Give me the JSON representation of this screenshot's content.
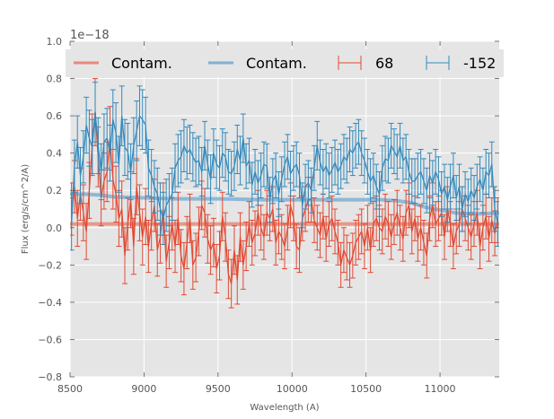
{
  "chart_data": {
    "type": "line",
    "title": "",
    "xlabel": "Wavelength (A)",
    "ylabel": "Flux (erg/s/cm^2/A)",
    "y_offset_label": "1e−18",
    "xlim": [
      8500,
      11400
    ],
    "ylim": [
      -0.8,
      1.0
    ],
    "xticks": [
      8500,
      9000,
      9500,
      10000,
      10500,
      11000
    ],
    "xtick_labels": [
      "8500",
      "9000",
      "9500",
      "10000",
      "10500",
      "11000"
    ],
    "yticks": [
      -0.8,
      -0.6,
      -0.4,
      -0.2,
      0.0,
      0.2,
      0.4,
      0.6,
      0.8,
      1.0
    ],
    "ytick_labels": [
      "−0.8",
      "−0.6",
      "−0.4",
      "−0.2",
      "0.0",
      "0.2",
      "0.4",
      "0.6",
      "0.8",
      "1.0"
    ],
    "grid": true,
    "legend_position": "top",
    "legend": [
      {
        "label": "Contam.",
        "kind": "line",
        "color": "#E8897A"
      },
      {
        "label": "Contam.",
        "kind": "line",
        "color": "#7FB0D3"
      },
      {
        "label": "68",
        "kind": "errorbar",
        "color": "#E24A33"
      },
      {
        "label": "-152",
        "kind": "errorbar",
        "color": "#348ABD"
      }
    ],
    "x_start": 8510,
    "x_step": 20,
    "series": [
      {
        "name": "-152",
        "kind": "errorbar",
        "color": "#348ABD",
        "values": [
          0.02,
          0.33,
          0.46,
          0.28,
          0.38,
          0.55,
          0.48,
          0.43,
          0.62,
          0.44,
          0.3,
          0.46,
          0.48,
          0.4,
          0.58,
          0.51,
          0.34,
          0.6,
          0.43,
          0.41,
          0.3,
          0.44,
          0.52,
          0.6,
          0.58,
          0.55,
          0.32,
          0.28,
          0.22,
          0.18,
          0.1,
          0.05,
          0.12,
          0.15,
          0.18,
          0.32,
          0.36,
          0.38,
          0.44,
          0.4,
          0.42,
          0.38,
          0.35,
          0.36,
          0.3,
          0.44,
          0.34,
          0.26,
          0.4,
          0.34,
          0.32,
          0.4,
          0.38,
          0.3,
          0.29,
          0.33,
          0.42,
          0.36,
          0.48,
          0.33,
          0.36,
          0.23,
          0.3,
          0.24,
          0.28,
          0.34,
          0.33,
          0.15,
          0.25,
          0.28,
          0.18,
          0.26,
          0.34,
          0.38,
          0.29,
          0.32,
          0.34,
          0.28,
          0.12,
          0.22,
          0.24,
          0.2,
          0.32,
          0.44,
          0.35,
          0.3,
          0.33,
          0.28,
          0.31,
          0.35,
          0.3,
          0.33,
          0.38,
          0.36,
          0.42,
          0.4,
          0.44,
          0.46,
          0.4,
          0.36,
          0.3,
          0.25,
          0.28,
          0.22,
          0.18,
          0.32,
          0.37,
          0.36,
          0.44,
          0.41,
          0.38,
          0.44,
          0.36,
          0.38,
          0.3,
          0.25,
          0.25,
          0.28,
          0.3,
          0.25,
          0.2,
          0.28,
          0.24,
          0.3,
          0.26,
          0.18,
          0.22,
          0.15,
          0.22,
          0.28,
          0.16,
          0.22,
          0.1,
          0.18,
          0.14,
          0.2,
          0.16,
          0.22,
          0.26,
          0.2,
          0.3,
          0.28,
          0.34,
          0.1,
          0.02
        ],
        "errors": [
          0.14,
          0.14,
          0.14,
          0.15,
          0.14,
          0.15,
          0.15,
          0.15,
          0.16,
          0.15,
          0.15,
          0.15,
          0.16,
          0.15,
          0.16,
          0.16,
          0.15,
          0.16,
          0.15,
          0.15,
          0.15,
          0.15,
          0.16,
          0.16,
          0.16,
          0.15,
          0.15,
          0.14,
          0.14,
          0.14,
          0.14,
          0.14,
          0.14,
          0.14,
          0.14,
          0.13,
          0.14,
          0.14,
          0.14,
          0.14,
          0.13,
          0.13,
          0.13,
          0.13,
          0.13,
          0.13,
          0.13,
          0.13,
          0.13,
          0.13,
          0.12,
          0.13,
          0.13,
          0.12,
          0.12,
          0.13,
          0.13,
          0.13,
          0.13,
          0.12,
          0.12,
          0.12,
          0.12,
          0.12,
          0.12,
          0.12,
          0.12,
          0.12,
          0.12,
          0.12,
          0.12,
          0.12,
          0.12,
          0.12,
          0.12,
          0.12,
          0.12,
          0.12,
          0.12,
          0.12,
          0.12,
          0.12,
          0.12,
          0.13,
          0.12,
          0.12,
          0.12,
          0.12,
          0.12,
          0.12,
          0.12,
          0.12,
          0.12,
          0.12,
          0.12,
          0.12,
          0.12,
          0.12,
          0.12,
          0.12,
          0.12,
          0.12,
          0.12,
          0.12,
          0.12,
          0.12,
          0.12,
          0.12,
          0.12,
          0.12,
          0.12,
          0.12,
          0.12,
          0.12,
          0.12,
          0.12,
          0.12,
          0.12,
          0.12,
          0.12,
          0.12,
          0.12,
          0.12,
          0.12,
          0.12,
          0.12,
          0.12,
          0.12,
          0.12,
          0.12,
          0.12,
          0.12,
          0.12,
          0.12,
          0.12,
          0.12,
          0.12,
          0.12,
          0.12,
          0.12,
          0.12,
          0.12,
          0.12,
          0.12,
          0.12
        ]
      },
      {
        "name": "68",
        "kind": "errorbar",
        "color": "#E24A33",
        "values": [
          0.1,
          0.22,
          0.05,
          0.18,
          0.08,
          -0.02,
          0.2,
          0.45,
          0.62,
          0.38,
          0.16,
          0.25,
          0.3,
          0.48,
          0.26,
          0.18,
          0.05,
          0.1,
          -0.15,
          0.02,
          0.15,
          -0.1,
          0.22,
          0.08,
          -0.05,
          0.06,
          -0.1,
          0.02,
          0.12,
          -0.12,
          -0.05,
          0.1,
          -0.18,
          -0.08,
          0.02,
          -0.1,
          0.05,
          -0.15,
          -0.22,
          -0.08,
          0.05,
          -0.2,
          -0.16,
          -0.02,
          0.12,
          0.08,
          -0.06,
          -0.12,
          -0.08,
          -0.22,
          -0.15,
          0.06,
          -0.05,
          -0.25,
          -0.3,
          -0.12,
          -0.28,
          -0.05,
          -0.2,
          -0.1,
          0.02,
          -0.08,
          -0.03,
          0.08,
          0.0,
          -0.05,
          0.08,
          0.05,
          0.1,
          -0.08,
          -0.02,
          -0.05,
          -0.1,
          0.0,
          0.12,
          0.05,
          -0.1,
          -0.12,
          0.05,
          0.1,
          0.15,
          0.15,
          0.04,
          0.0,
          -0.04,
          0.06,
          -0.06,
          0.02,
          0.05,
          -0.02,
          -0.08,
          -0.2,
          -0.12,
          -0.16,
          -0.2,
          -0.15,
          -0.08,
          -0.05,
          -0.02,
          -0.1,
          0.0,
          -0.12,
          0.02,
          0.05,
          0.0,
          -0.02,
          0.06,
          0.02,
          -0.05,
          0.03,
          0.08,
          0.0,
          -0.06,
          0.08,
          0.12,
          -0.02,
          0.05,
          -0.06,
          0.0,
          -0.08,
          -0.15,
          0.05,
          0.12,
          0.02,
          0.05,
          0.08,
          -0.05,
          0.1,
          0.02,
          -0.1,
          -0.02,
          0.02,
          0.1,
          0.05,
          0.0,
          -0.05,
          0.02,
          0.08,
          -0.1,
          0.0,
          0.06,
          -0.06,
          0.04,
          -0.03,
          0.04
        ],
        "errors": [
          0.14,
          0.14,
          0.15,
          0.14,
          0.15,
          0.15,
          0.15,
          0.16,
          0.18,
          0.16,
          0.15,
          0.15,
          0.16,
          0.17,
          0.16,
          0.15,
          0.15,
          0.15,
          0.15,
          0.14,
          0.15,
          0.15,
          0.15,
          0.15,
          0.15,
          0.15,
          0.14,
          0.14,
          0.14,
          0.14,
          0.14,
          0.14,
          0.14,
          0.14,
          0.14,
          0.14,
          0.14,
          0.14,
          0.14,
          0.14,
          0.13,
          0.13,
          0.13,
          0.13,
          0.13,
          0.13,
          0.13,
          0.13,
          0.13,
          0.13,
          0.13,
          0.13,
          0.13,
          0.13,
          0.13,
          0.13,
          0.13,
          0.13,
          0.13,
          0.13,
          0.12,
          0.12,
          0.12,
          0.12,
          0.12,
          0.12,
          0.12,
          0.12,
          0.12,
          0.12,
          0.12,
          0.12,
          0.12,
          0.12,
          0.12,
          0.12,
          0.12,
          0.12,
          0.12,
          0.12,
          0.12,
          0.12,
          0.12,
          0.12,
          0.12,
          0.12,
          0.12,
          0.12,
          0.12,
          0.12,
          0.12,
          0.12,
          0.12,
          0.12,
          0.12,
          0.12,
          0.12,
          0.12,
          0.12,
          0.12,
          0.12,
          0.12,
          0.12,
          0.12,
          0.12,
          0.12,
          0.12,
          0.12,
          0.12,
          0.12,
          0.12,
          0.12,
          0.12,
          0.12,
          0.12,
          0.12,
          0.12,
          0.12,
          0.12,
          0.12,
          0.12,
          0.12,
          0.12,
          0.12,
          0.12,
          0.12,
          0.12,
          0.12,
          0.12,
          0.12,
          0.12,
          0.12,
          0.12,
          0.12,
          0.12,
          0.12,
          0.12,
          0.12,
          0.12,
          0.12,
          0.12,
          0.12,
          0.12,
          0.12,
          0.12
        ]
      },
      {
        "name": "Contam. (-152)",
        "kind": "line",
        "color": "#7FB0D3",
        "x": [
          8500,
          8600,
          8700,
          8800,
          9000,
          9200,
          9500,
          9800,
          10000,
          10300,
          10600,
          10700,
          10800,
          10900,
          11000,
          11100,
          11200,
          11300,
          11400
        ],
        "values": [
          0.18,
          0.18,
          0.175,
          0.165,
          0.16,
          0.155,
          0.155,
          0.15,
          0.15,
          0.15,
          0.15,
          0.145,
          0.135,
          0.11,
          0.095,
          0.08,
          0.075,
          0.075,
          0.08
        ]
      },
      {
        "name": "Contam. (68)",
        "kind": "line",
        "color": "#E8897A",
        "x": [
          8500,
          9000,
          9500,
          10000,
          10500,
          11000,
          11400
        ],
        "values": [
          0.02,
          0.02,
          0.02,
          0.02,
          0.02,
          0.02,
          0.02
        ]
      }
    ]
  }
}
